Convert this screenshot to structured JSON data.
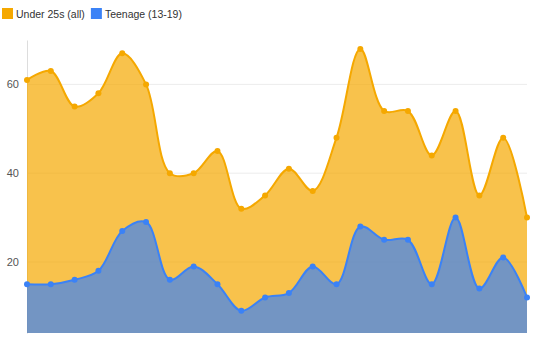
{
  "chart_data": {
    "type": "area",
    "categories": [
      null,
      null,
      null,
      null,
      null,
      null,
      null,
      null,
      null,
      null,
      null,
      null,
      null,
      null,
      null,
      null,
      null,
      null,
      null,
      null,
      null,
      null
    ],
    "series": [
      {
        "name": "Under 25s (all)",
        "color": "#f5a800",
        "marker": "circle",
        "values": [
          61,
          63,
          55,
          58,
          67,
          60,
          40,
          40,
          45,
          32,
          35,
          41,
          36,
          48,
          68,
          54,
          54,
          44,
          54,
          35,
          48,
          30
        ]
      },
      {
        "name": "Teenage (13-19)",
        "color": "#3b82f6",
        "marker": "circle",
        "values": [
          15,
          15,
          16,
          18,
          27,
          29,
          16,
          19,
          15,
          9,
          12,
          13,
          19,
          15,
          28,
          25,
          25,
          15,
          30,
          14,
          21,
          12
        ]
      }
    ],
    "ylim": [
      4,
      70
    ],
    "yticks": [
      20,
      40,
      60
    ],
    "grid": true,
    "legend": "top-left",
    "tick_labels": "y"
  }
}
